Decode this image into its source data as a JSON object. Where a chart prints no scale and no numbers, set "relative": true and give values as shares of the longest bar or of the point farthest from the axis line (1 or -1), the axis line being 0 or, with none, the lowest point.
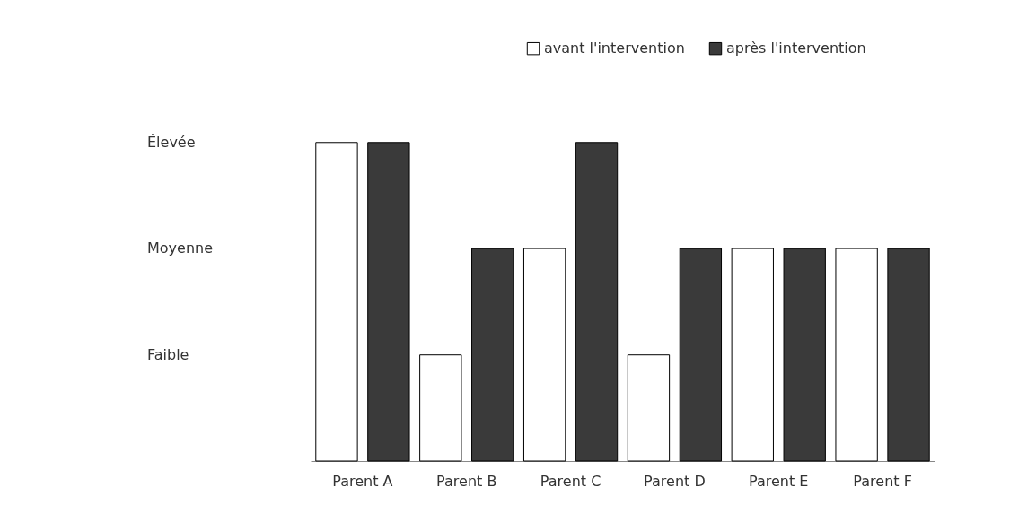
{
  "chart_data": {
    "type": "bar",
    "relative": true,
    "categories": [
      "Parent A",
      "Parent B",
      "Parent C",
      "Parent D",
      "Parent E",
      "Parent F"
    ],
    "series": [
      {
        "name": "avant l'intervention",
        "color": "#ffffff",
        "values": [
          1,
          0.333,
          0.667,
          0.333,
          0.667,
          0.667
        ]
      },
      {
        "name": "après l'intervention",
        "color": "#3a3a3a",
        "values": [
          1,
          0.667,
          1,
          0.667,
          0.667,
          0.667
        ]
      }
    ],
    "annotations": [
      "Faible",
      "Moyenne",
      "Élevée"
    ],
    "grid": false,
    "legend": "top right"
  }
}
